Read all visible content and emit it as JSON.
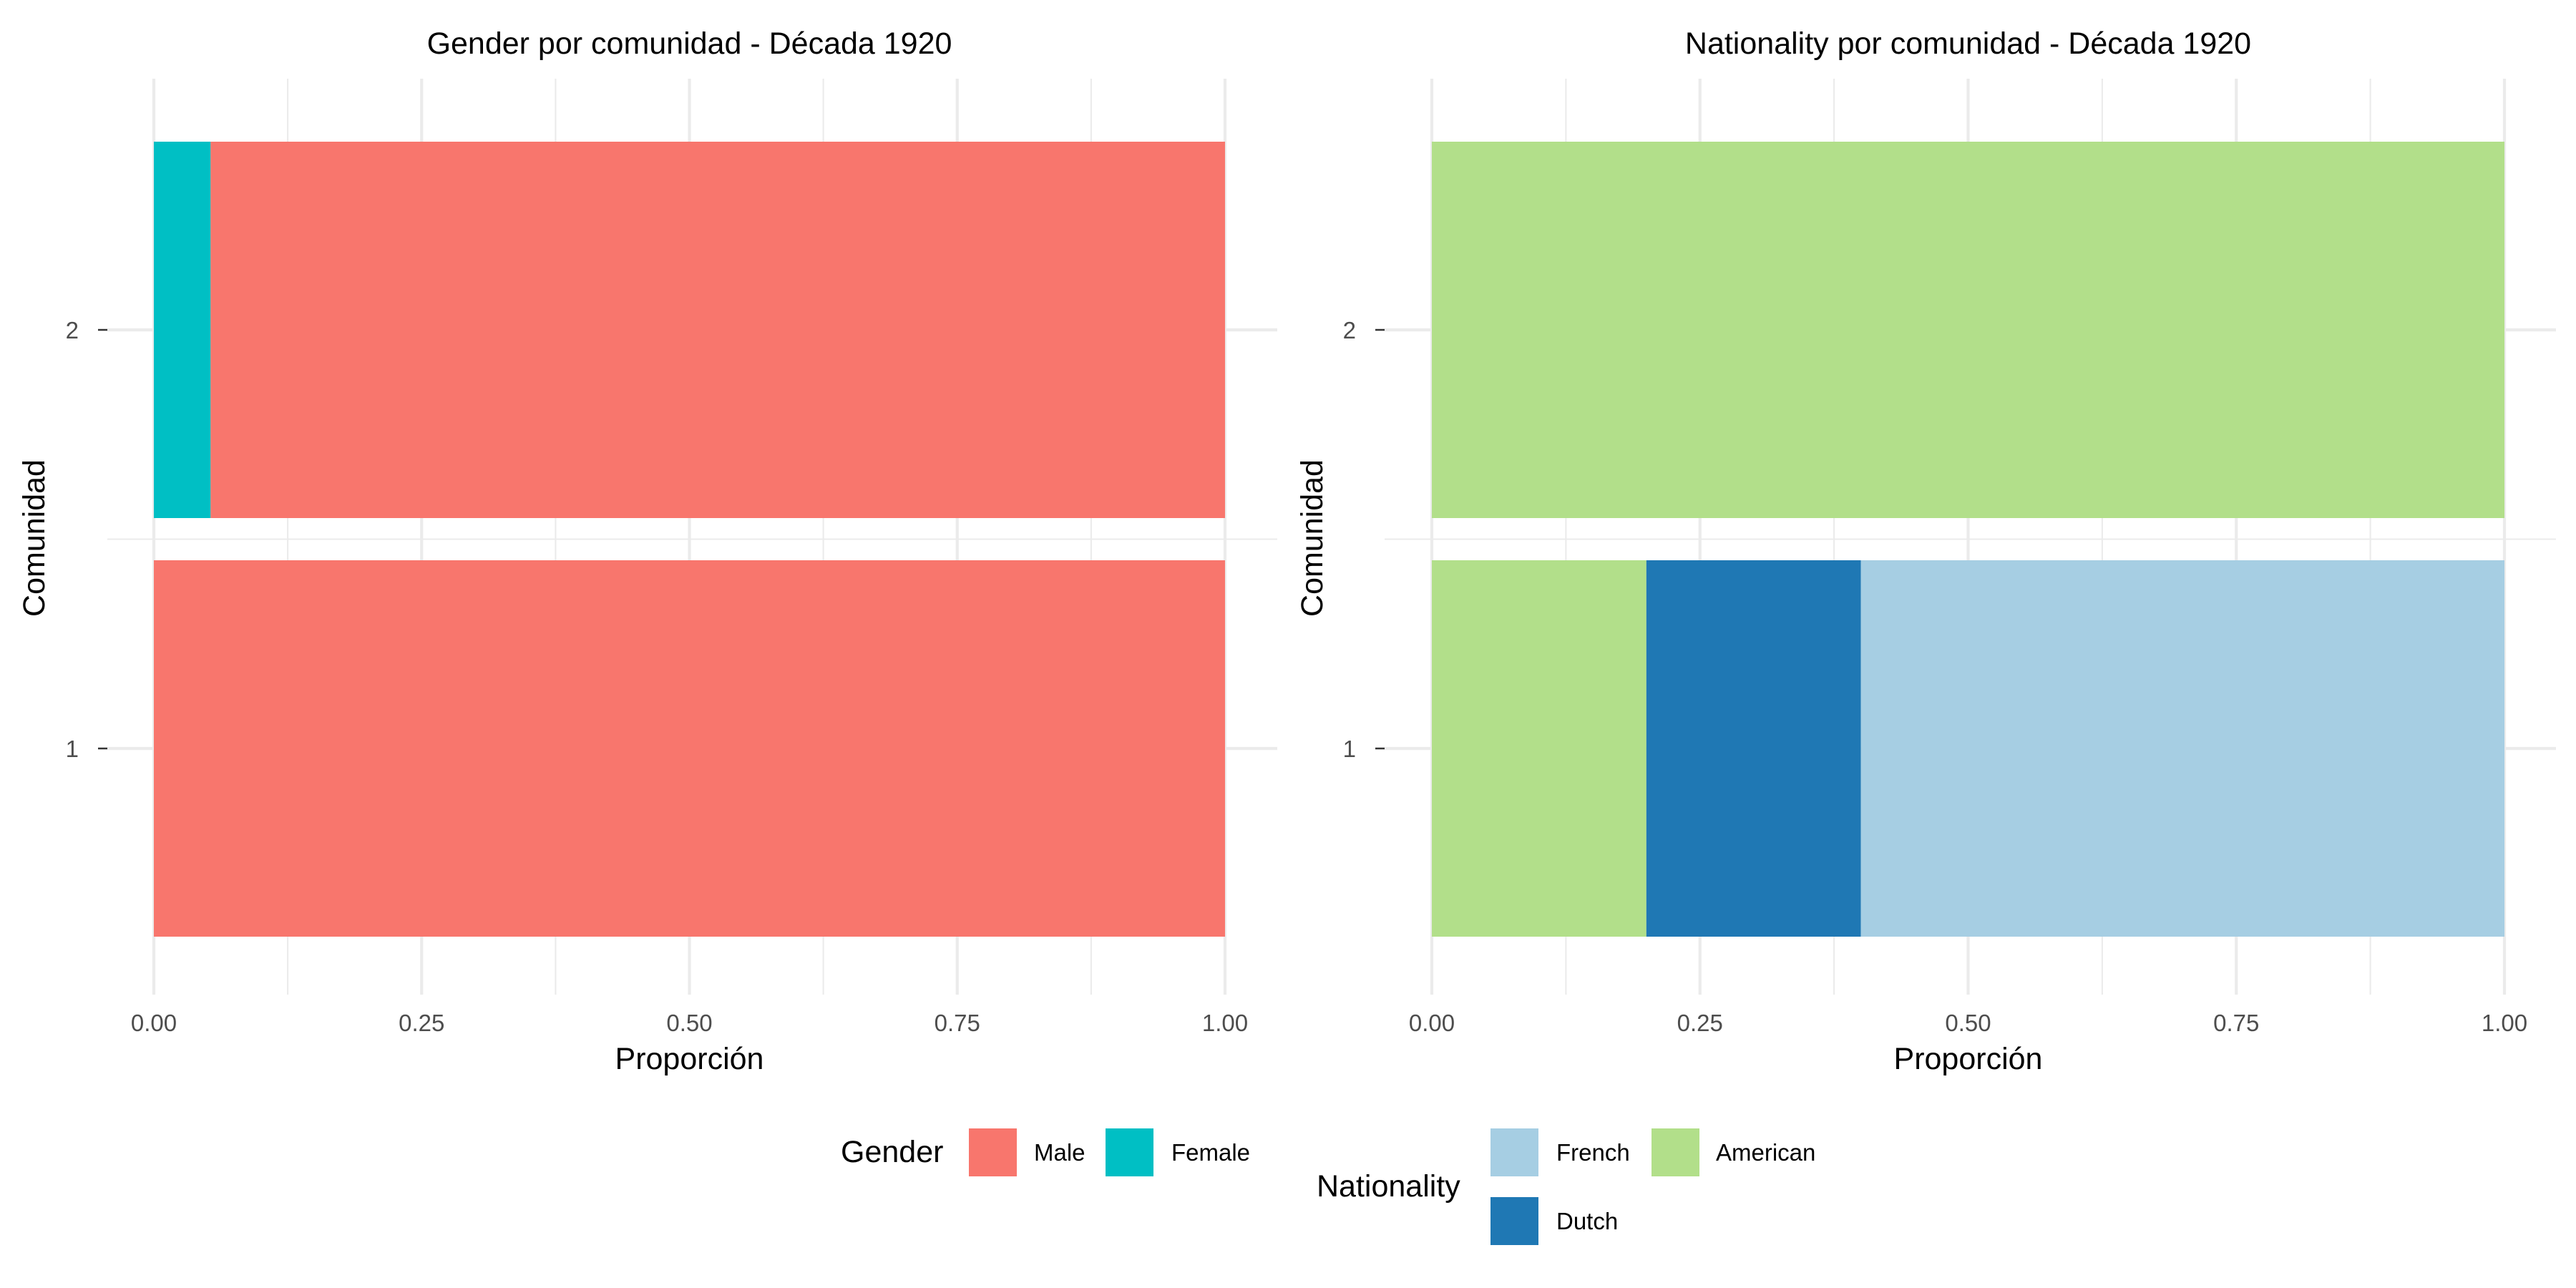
{
  "chart_data": [
    {
      "type": "bar",
      "orientation": "horizontal",
      "stacked": true,
      "title": "Gender por comunidad - Década 1920",
      "xlabel": "Proporción",
      "ylabel": "Comunidad",
      "xlim": [
        0,
        1
      ],
      "x_ticks": [
        "0.00",
        "0.25",
        "0.50",
        "0.75",
        "1.00"
      ],
      "categories": [
        "1",
        "2"
      ],
      "series": [
        {
          "name": "Female",
          "color": "#00BFC4",
          "values": [
            0,
            0.053
          ]
        },
        {
          "name": "Male",
          "color": "#F8766D",
          "values": [
            1,
            0.947
          ]
        }
      ],
      "legend": {
        "title": "Gender",
        "items": [
          "Male",
          "Female"
        ],
        "position": "bottom"
      }
    },
    {
      "type": "bar",
      "orientation": "horizontal",
      "stacked": true,
      "title": "Nationality por comunidad - Década 1920",
      "xlabel": "Proporción",
      "ylabel": "Comunidad",
      "xlim": [
        0,
        1
      ],
      "x_ticks": [
        "0.00",
        "0.25",
        "0.50",
        "0.75",
        "1.00"
      ],
      "categories": [
        "1",
        "2"
      ],
      "series": [
        {
          "name": "American",
          "color": "#B2DF8A",
          "values": [
            0.2,
            1.0
          ]
        },
        {
          "name": "Dutch",
          "color": "#1F78B4",
          "values": [
            0.2,
            0
          ]
        },
        {
          "name": "French",
          "color": "#A6CEE3",
          "values": [
            0.6,
            0
          ]
        }
      ],
      "legend": {
        "title": "Nationality",
        "items": [
          "French",
          "American",
          "Dutch"
        ],
        "position": "bottom"
      }
    }
  ]
}
